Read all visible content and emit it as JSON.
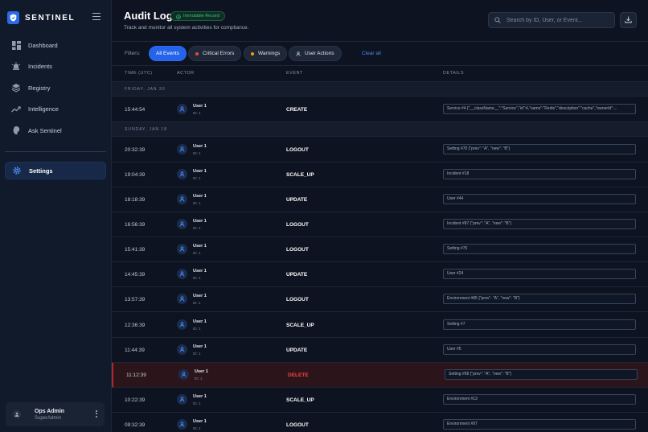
{
  "brand": {
    "name": "SENTINEL",
    "icon": "shield-icon"
  },
  "sidebar": {
    "items": [
      {
        "label": "Dashboard",
        "icon": "dashboard-icon"
      },
      {
        "label": "Incidents",
        "icon": "alarm-bell-icon"
      },
      {
        "label": "Registry",
        "icon": "layers-icon"
      },
      {
        "label": "Intelligence",
        "icon": "trend-chart-icon"
      },
      {
        "label": "Ask Sentinel",
        "icon": "brain-icon"
      }
    ],
    "active_item": {
      "label": "Settings",
      "icon": "gear-icon"
    }
  },
  "user": {
    "name": "Ops Admin",
    "role": "SuperAdmin"
  },
  "header": {
    "title": "Audit Log",
    "badge": "Immutable Record",
    "subtitle": "Track and monitor all system activities for compliance.",
    "search_placeholder": "Search by ID, User, or Event..."
  },
  "filters": {
    "label": "Filters:",
    "chips": [
      "All Events",
      "Critical Errors",
      "Warnings",
      "User Actions"
    ],
    "clear": "Clear all"
  },
  "colors": {
    "accent": "#2563eb",
    "critical": "#ef4444",
    "warning": "#f59e0b",
    "success": "#34c37a"
  },
  "table": {
    "columns": [
      "TIME (UTC)",
      "ACTOR",
      "EVENT",
      "DETAILS"
    ],
    "groups": [
      "FRIDAY, JAN 30",
      "SUNDAY, JAN 18"
    ],
    "rows": [
      {
        "time": "15:44:54",
        "actor": "User 1",
        "actor_id": "ID: 1",
        "event": "CREATE",
        "details": "Service #4 {\"__className__\":\"Service\",\"id\":4,\"name\":\"Redis\",\"description\":\"cache\",\"ownerId\":..."
      },
      {
        "time": "20:32:39",
        "actor": "User 1",
        "actor_id": "ID: 1",
        "event": "LOGOUT",
        "details": "Setting #70 {\"prev\": \"A\", \"new\": \"B\"}"
      },
      {
        "time": "19:04:39",
        "actor": "User 1",
        "actor_id": "ID: 1",
        "event": "SCALE_UP",
        "details": "Incident #18"
      },
      {
        "time": "18:18:39",
        "actor": "User 1",
        "actor_id": "ID: 1",
        "event": "UPDATE",
        "details": "User #44"
      },
      {
        "time": "16:56:39",
        "actor": "User 1",
        "actor_id": "ID: 1",
        "event": "LOGOUT",
        "details": "Incident #87 {\"prev\": \"A\", \"new\": \"B\"}"
      },
      {
        "time": "15:41:39",
        "actor": "User 1",
        "actor_id": "ID: 1",
        "event": "LOGOUT",
        "details": "Setting #75"
      },
      {
        "time": "14:45:39",
        "actor": "User 1",
        "actor_id": "ID: 1",
        "event": "UPDATE",
        "details": "User #24"
      },
      {
        "time": "13:57:39",
        "actor": "User 1",
        "actor_id": "ID: 1",
        "event": "LOGOUT",
        "details": "Environment #85 {\"prev\": \"A\", \"new\": \"B\"}"
      },
      {
        "time": "12:36:39",
        "actor": "User 1",
        "actor_id": "ID: 1",
        "event": "SCALE_UP",
        "details": "Setting #7"
      },
      {
        "time": "11:44:39",
        "actor": "User 1",
        "actor_id": "ID: 1",
        "event": "UPDATE",
        "details": "User #5"
      },
      {
        "time": "11:12:39",
        "actor": "User 1",
        "actor_id": "ID: 1",
        "event": "DELETE",
        "details": "Setting #68 {\"prev\": \"A\", \"new\": \"B\"}",
        "critical": true
      },
      {
        "time": "10:22:39",
        "actor": "User 1",
        "actor_id": "ID: 1",
        "event": "SCALE_UP",
        "details": "Environment #13"
      },
      {
        "time": "09:32:39",
        "actor": "User 1",
        "actor_id": "ID: 1",
        "event": "LOGOUT",
        "details": "Environment #97"
      }
    ]
  }
}
